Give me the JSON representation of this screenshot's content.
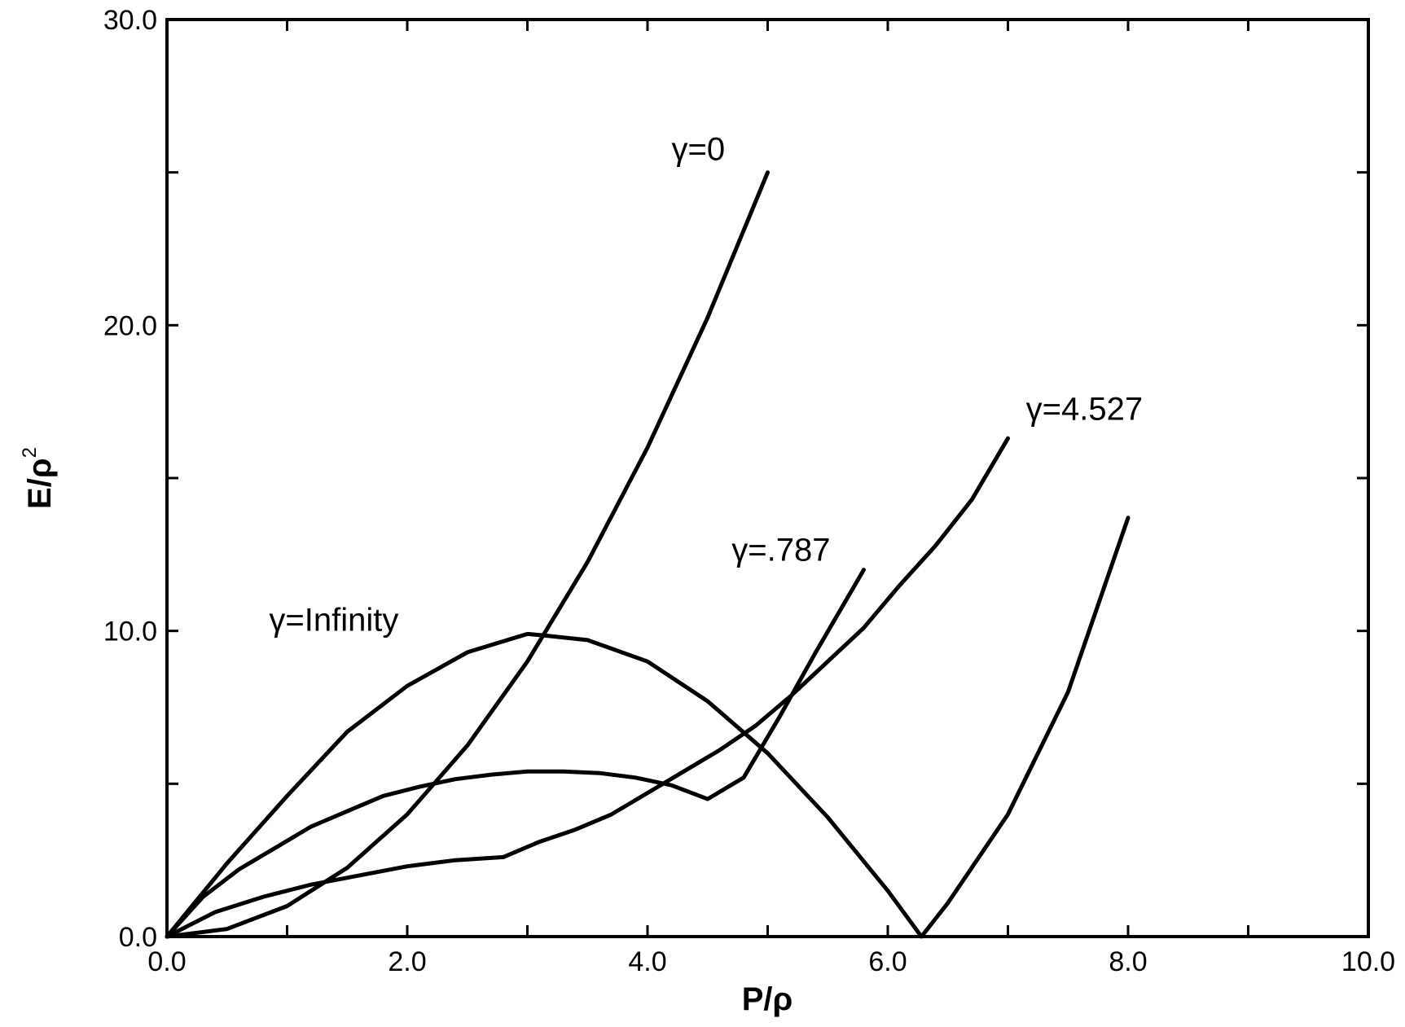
{
  "chart_data": {
    "type": "line",
    "xlabel": "P/ρ",
    "ylabel": "E/ρ²",
    "ylabel_parts": {
      "main": "E/ρ",
      "sup": "2"
    },
    "xlim": [
      0,
      10
    ],
    "ylim": [
      0,
      30
    ],
    "xticks": [
      0,
      2,
      4,
      6,
      8,
      10
    ],
    "xtick_labels": [
      "0.0",
      "2.0",
      "4.0",
      "6.0",
      "8.0",
      "10.0"
    ],
    "yticks": [
      0,
      10,
      20,
      30
    ],
    "ytick_labels": [
      "0.0",
      "10.0",
      "20.0",
      "30.0"
    ],
    "grid": false,
    "legend": "none",
    "series": [
      {
        "name": "γ=0",
        "x": [
          0,
          0.5,
          1,
          1.5,
          2,
          2.5,
          3,
          3.5,
          4,
          4.5,
          5
        ],
        "y": [
          0,
          0.25,
          1,
          2.25,
          4,
          6.25,
          9,
          12.25,
          16,
          20.25,
          25
        ]
      },
      {
        "name": "γ=.787",
        "x": [
          0,
          0.3,
          0.6,
          0.9,
          1.2,
          1.5,
          1.8,
          2.1,
          2.4,
          2.7,
          3.0,
          3.3,
          3.6,
          3.9,
          4.2,
          4.5,
          4.8,
          5.1,
          5.4,
          5.8
        ],
        "y": [
          0,
          1.3,
          2.2,
          2.9,
          3.6,
          4.1,
          4.6,
          4.9,
          5.15,
          5.3,
          5.4,
          5.4,
          5.35,
          5.2,
          4.95,
          4.5,
          5.2,
          7.2,
          9.3,
          12.0
        ]
      },
      {
        "name": "γ=4.527",
        "x": [
          0,
          0.4,
          0.8,
          1.2,
          1.6,
          2.0,
          2.4,
          2.8,
          3.1,
          3.4,
          3.7,
          4.0,
          4.3,
          4.6,
          4.9,
          5.2,
          5.5,
          5.8,
          6.1,
          6.4,
          6.7,
          7.0
        ],
        "y": [
          0,
          0.8,
          1.3,
          1.7,
          2.0,
          2.3,
          2.5,
          2.6,
          3.1,
          3.5,
          4.0,
          4.7,
          5.4,
          6.1,
          6.9,
          7.9,
          9.0,
          10.1,
          11.5,
          12.8,
          14.3,
          16.3
        ]
      },
      {
        "name": "γ=Infinity",
        "x": [
          0,
          0.5,
          1.0,
          1.5,
          2.0,
          2.5,
          3.0,
          3.14,
          3.5,
          4.0,
          4.5,
          5.0,
          5.5,
          6.0,
          6.28,
          6.5,
          7.0,
          7.5,
          8.0
        ],
        "y": [
          0,
          2.4,
          4.6,
          6.7,
          8.2,
          9.3,
          9.9,
          9.85,
          9.7,
          9.0,
          7.7,
          6.0,
          3.9,
          1.5,
          0,
          1.1,
          4.0,
          8.0,
          13.7
        ]
      }
    ],
    "annotations": [
      {
        "text": "γ=0",
        "x": 4.2,
        "y": 25.4
      },
      {
        "text": "γ=4.527",
        "x": 7.15,
        "y": 16.9
      },
      {
        "text": "γ=.787",
        "x": 4.7,
        "y": 12.3
      },
      {
        "text": "γ=Infinity",
        "x": 0.85,
        "y": 10.0
      }
    ]
  }
}
